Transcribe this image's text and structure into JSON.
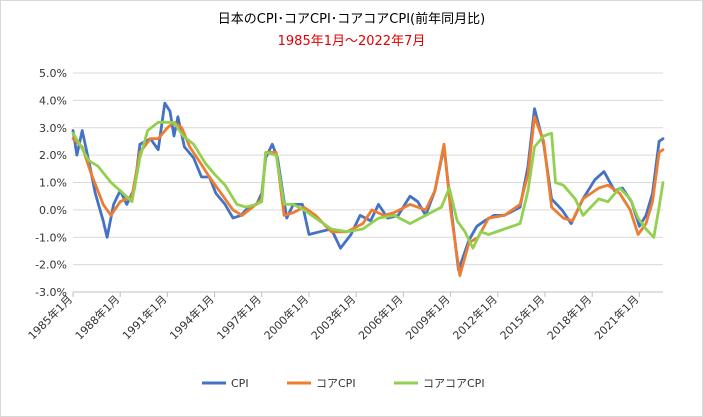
{
  "chart_data": {
    "type": "line",
    "title": "日本のCPI･コアCPI･コアコアCPI(前年同月比)",
    "subtitle": "1985年1月～2022年7月",
    "ylim": [
      -3.0,
      5.0
    ],
    "ytick_values": [
      5,
      4,
      3,
      2,
      1,
      0,
      -1,
      -2,
      -3
    ],
    "yticks": [
      "5.0%",
      "4.0%",
      "3.0%",
      "2.0%",
      "1.0%",
      "0.0%",
      "-1.0%",
      "-2.0%",
      "-3.0%"
    ],
    "x_start": "1985-01",
    "x_end": "2022-07",
    "xtick_dates": [
      "1985-01",
      "1988-01",
      "1991-01",
      "1994-01",
      "1997-01",
      "2000-01",
      "2003-01",
      "2006-01",
      "2009-01",
      "2012-01",
      "2015-01",
      "2018-01",
      "2021-01"
    ],
    "xticks": [
      "1985年1月",
      "1988年1月",
      "1991年1月",
      "1994年1月",
      "1997年1月",
      "2000年1月",
      "2003年1月",
      "2006年1月",
      "2009年1月",
      "2012年1月",
      "2015年1月",
      "2018年1月",
      "2021年1月"
    ],
    "grid": true,
    "legend_position": "bottom",
    "series": [
      {
        "name": "CPI",
        "color": "#4472c4",
        "points": [
          [
            "1985-01",
            2.9
          ],
          [
            "1985-04",
            2.0
          ],
          [
            "1985-08",
            2.9
          ],
          [
            "1986-01",
            1.8
          ],
          [
            "1986-06",
            0.6
          ],
          [
            "1986-12",
            -0.4
          ],
          [
            "1987-03",
            -1.0
          ],
          [
            "1987-08",
            0.2
          ],
          [
            "1988-01",
            0.7
          ],
          [
            "1988-06",
            0.2
          ],
          [
            "1988-12",
            0.8
          ],
          [
            "1989-04",
            2.4
          ],
          [
            "1989-12",
            2.6
          ],
          [
            "1990-06",
            2.2
          ],
          [
            "1990-11",
            3.9
          ],
          [
            "1991-03",
            3.6
          ],
          [
            "1991-06",
            2.7
          ],
          [
            "1991-09",
            3.4
          ],
          [
            "1992-02",
            2.3
          ],
          [
            "1992-09",
            1.9
          ],
          [
            "1993-03",
            1.2
          ],
          [
            "1993-09",
            1.2
          ],
          [
            "1994-02",
            0.6
          ],
          [
            "1994-09",
            0.2
          ],
          [
            "1995-03",
            -0.3
          ],
          [
            "1995-09",
            -0.2
          ],
          [
            "1996-03",
            0.1
          ],
          [
            "1996-09",
            0.2
          ],
          [
            "1997-01",
            0.6
          ],
          [
            "1997-04",
            1.9
          ],
          [
            "1997-09",
            2.4
          ],
          [
            "1998-01",
            1.9
          ],
          [
            "1998-08",
            -0.3
          ],
          [
            "1999-01",
            0.2
          ],
          [
            "1999-08",
            0.2
          ],
          [
            "2000-01",
            -0.9
          ],
          [
            "2000-09",
            -0.8
          ],
          [
            "2001-06",
            -0.7
          ],
          [
            "2002-01",
            -1.4
          ],
          [
            "2002-09",
            -0.9
          ],
          [
            "2003-04",
            -0.2
          ],
          [
            "2003-12",
            -0.4
          ],
          [
            "2004-06",
            0.2
          ],
          [
            "2005-01",
            -0.3
          ],
          [
            "2005-09",
            -0.2
          ],
          [
            "2006-06",
            0.5
          ],
          [
            "2006-12",
            0.3
          ],
          [
            "2007-06",
            -0.2
          ],
          [
            "2008-01",
            0.7
          ],
          [
            "2008-08",
            2.3
          ],
          [
            "2009-01",
            0.2
          ],
          [
            "2009-07",
            -2.2
          ],
          [
            "2010-03",
            -1.1
          ],
          [
            "2010-09",
            -0.6
          ],
          [
            "2011-03",
            -0.4
          ],
          [
            "2011-10",
            -0.2
          ],
          [
            "2012-06",
            -0.2
          ],
          [
            "2013-06",
            0.1
          ],
          [
            "2013-12",
            1.6
          ],
          [
            "2014-05",
            3.7
          ],
          [
            "2014-12",
            2.4
          ],
          [
            "2015-06",
            0.4
          ],
          [
            "2016-02",
            0.0
          ],
          [
            "2016-09",
            -0.5
          ],
          [
            "2017-06",
            0.4
          ],
          [
            "2018-03",
            1.1
          ],
          [
            "2018-10",
            1.4
          ],
          [
            "2019-06",
            0.7
          ],
          [
            "2019-12",
            0.8
          ],
          [
            "2020-07",
            0.3
          ],
          [
            "2021-01",
            -0.6
          ],
          [
            "2021-06",
            -0.2
          ],
          [
            "2021-11",
            0.6
          ],
          [
            "2022-04",
            2.5
          ],
          [
            "2022-07",
            2.6
          ]
        ]
      },
      {
        "name": "コアCPI",
        "color": "#ed7d31",
        "points": [
          [
            "1985-01",
            2.6
          ],
          [
            "1985-08",
            2.3
          ],
          [
            "1986-03",
            1.3
          ],
          [
            "1986-12",
            0.2
          ],
          [
            "1987-06",
            -0.2
          ],
          [
            "1988-01",
            0.3
          ],
          [
            "1988-10",
            0.5
          ],
          [
            "1989-04",
            2.1
          ],
          [
            "1989-12",
            2.6
          ],
          [
            "1990-06",
            2.6
          ],
          [
            "1991-01",
            3.0
          ],
          [
            "1991-06",
            3.2
          ],
          [
            "1991-12",
            3.0
          ],
          [
            "1992-06",
            2.3
          ],
          [
            "1993-01",
            1.8
          ],
          [
            "1993-09",
            1.2
          ],
          [
            "1994-06",
            0.6
          ],
          [
            "1995-03",
            0.0
          ],
          [
            "1995-10",
            -0.2
          ],
          [
            "1996-06",
            0.1
          ],
          [
            "1997-01",
            0.4
          ],
          [
            "1997-04",
            2.1
          ],
          [
            "1997-12",
            2.1
          ],
          [
            "1998-06",
            -0.2
          ],
          [
            "1999-01",
            -0.1
          ],
          [
            "1999-09",
            0.1
          ],
          [
            "2000-06",
            -0.2
          ],
          [
            "2001-06",
            -0.8
          ],
          [
            "2002-06",
            -0.8
          ],
          [
            "2003-06",
            -0.5
          ],
          [
            "2004-01",
            0.0
          ],
          [
            "2004-10",
            -0.2
          ],
          [
            "2005-06",
            -0.1
          ],
          [
            "2006-06",
            0.2
          ],
          [
            "2007-06",
            0.0
          ],
          [
            "2008-01",
            0.7
          ],
          [
            "2008-08",
            2.4
          ],
          [
            "2009-01",
            0.0
          ],
          [
            "2009-08",
            -2.4
          ],
          [
            "2010-03",
            -1.2
          ],
          [
            "2010-10",
            -1.0
          ],
          [
            "2011-06",
            -0.3
          ],
          [
            "2012-06",
            -0.2
          ],
          [
            "2013-06",
            0.2
          ],
          [
            "2013-12",
            1.3
          ],
          [
            "2014-05",
            3.4
          ],
          [
            "2014-12",
            2.5
          ],
          [
            "2015-06",
            0.1
          ],
          [
            "2016-03",
            -0.3
          ],
          [
            "2016-10",
            -0.4
          ],
          [
            "2017-06",
            0.4
          ],
          [
            "2018-06",
            0.8
          ],
          [
            "2019-01",
            0.9
          ],
          [
            "2019-10",
            0.6
          ],
          [
            "2020-06",
            0.0
          ],
          [
            "2020-12",
            -0.9
          ],
          [
            "2021-06",
            -0.5
          ],
          [
            "2021-11",
            0.3
          ],
          [
            "2022-04",
            2.1
          ],
          [
            "2022-07",
            2.2
          ]
        ]
      },
      {
        "name": "コアコアCPI",
        "color": "#92d050",
        "points": [
          [
            "1985-01",
            2.8
          ],
          [
            "1985-06",
            2.4
          ],
          [
            "1986-01",
            1.8
          ],
          [
            "1986-08",
            1.6
          ],
          [
            "1987-06",
            1.0
          ],
          [
            "1988-01",
            0.7
          ],
          [
            "1988-10",
            0.3
          ],
          [
            "1989-04",
            1.9
          ],
          [
            "1989-10",
            2.9
          ],
          [
            "1990-06",
            3.2
          ],
          [
            "1990-12",
            3.2
          ],
          [
            "1991-06",
            3.2
          ],
          [
            "1992-01",
            2.7
          ],
          [
            "1992-09",
            2.4
          ],
          [
            "1993-06",
            1.7
          ],
          [
            "1994-01",
            1.3
          ],
          [
            "1994-09",
            0.9
          ],
          [
            "1995-06",
            0.2
          ],
          [
            "1996-01",
            0.1
          ],
          [
            "1996-09",
            0.2
          ],
          [
            "1997-01",
            0.3
          ],
          [
            "1997-04",
            2.1
          ],
          [
            "1997-12",
            2.0
          ],
          [
            "1998-06",
            0.2
          ],
          [
            "1999-01",
            0.2
          ],
          [
            "1999-09",
            0.0
          ],
          [
            "2000-06",
            -0.3
          ],
          [
            "2001-06",
            -0.7
          ],
          [
            "2002-06",
            -0.8
          ],
          [
            "2003-06",
            -0.7
          ],
          [
            "2004-06",
            -0.3
          ],
          [
            "2005-06",
            -0.2
          ],
          [
            "2006-06",
            -0.5
          ],
          [
            "2007-06",
            -0.2
          ],
          [
            "2008-06",
            0.1
          ],
          [
            "2008-12",
            0.8
          ],
          [
            "2009-06",
            -0.4
          ],
          [
            "2009-12",
            -0.8
          ],
          [
            "2010-06",
            -1.4
          ],
          [
            "2010-12",
            -0.8
          ],
          [
            "2011-06",
            -0.9
          ],
          [
            "2012-06",
            -0.7
          ],
          [
            "2013-06",
            -0.5
          ],
          [
            "2013-12",
            0.7
          ],
          [
            "2014-05",
            2.3
          ],
          [
            "2014-12",
            2.7
          ],
          [
            "2015-06",
            2.8
          ],
          [
            "2015-09",
            1.0
          ],
          [
            "2016-03",
            0.9
          ],
          [
            "2016-12",
            0.4
          ],
          [
            "2017-06",
            -0.2
          ],
          [
            "2018-06",
            0.4
          ],
          [
            "2019-01",
            0.3
          ],
          [
            "2019-10",
            0.8
          ],
          [
            "2020-06",
            0.4
          ],
          [
            "2020-12",
            -0.3
          ],
          [
            "2021-06",
            -0.7
          ],
          [
            "2021-12",
            -1.0
          ],
          [
            "2022-04",
            0.1
          ],
          [
            "2022-07",
            1.0
          ]
        ]
      }
    ]
  }
}
